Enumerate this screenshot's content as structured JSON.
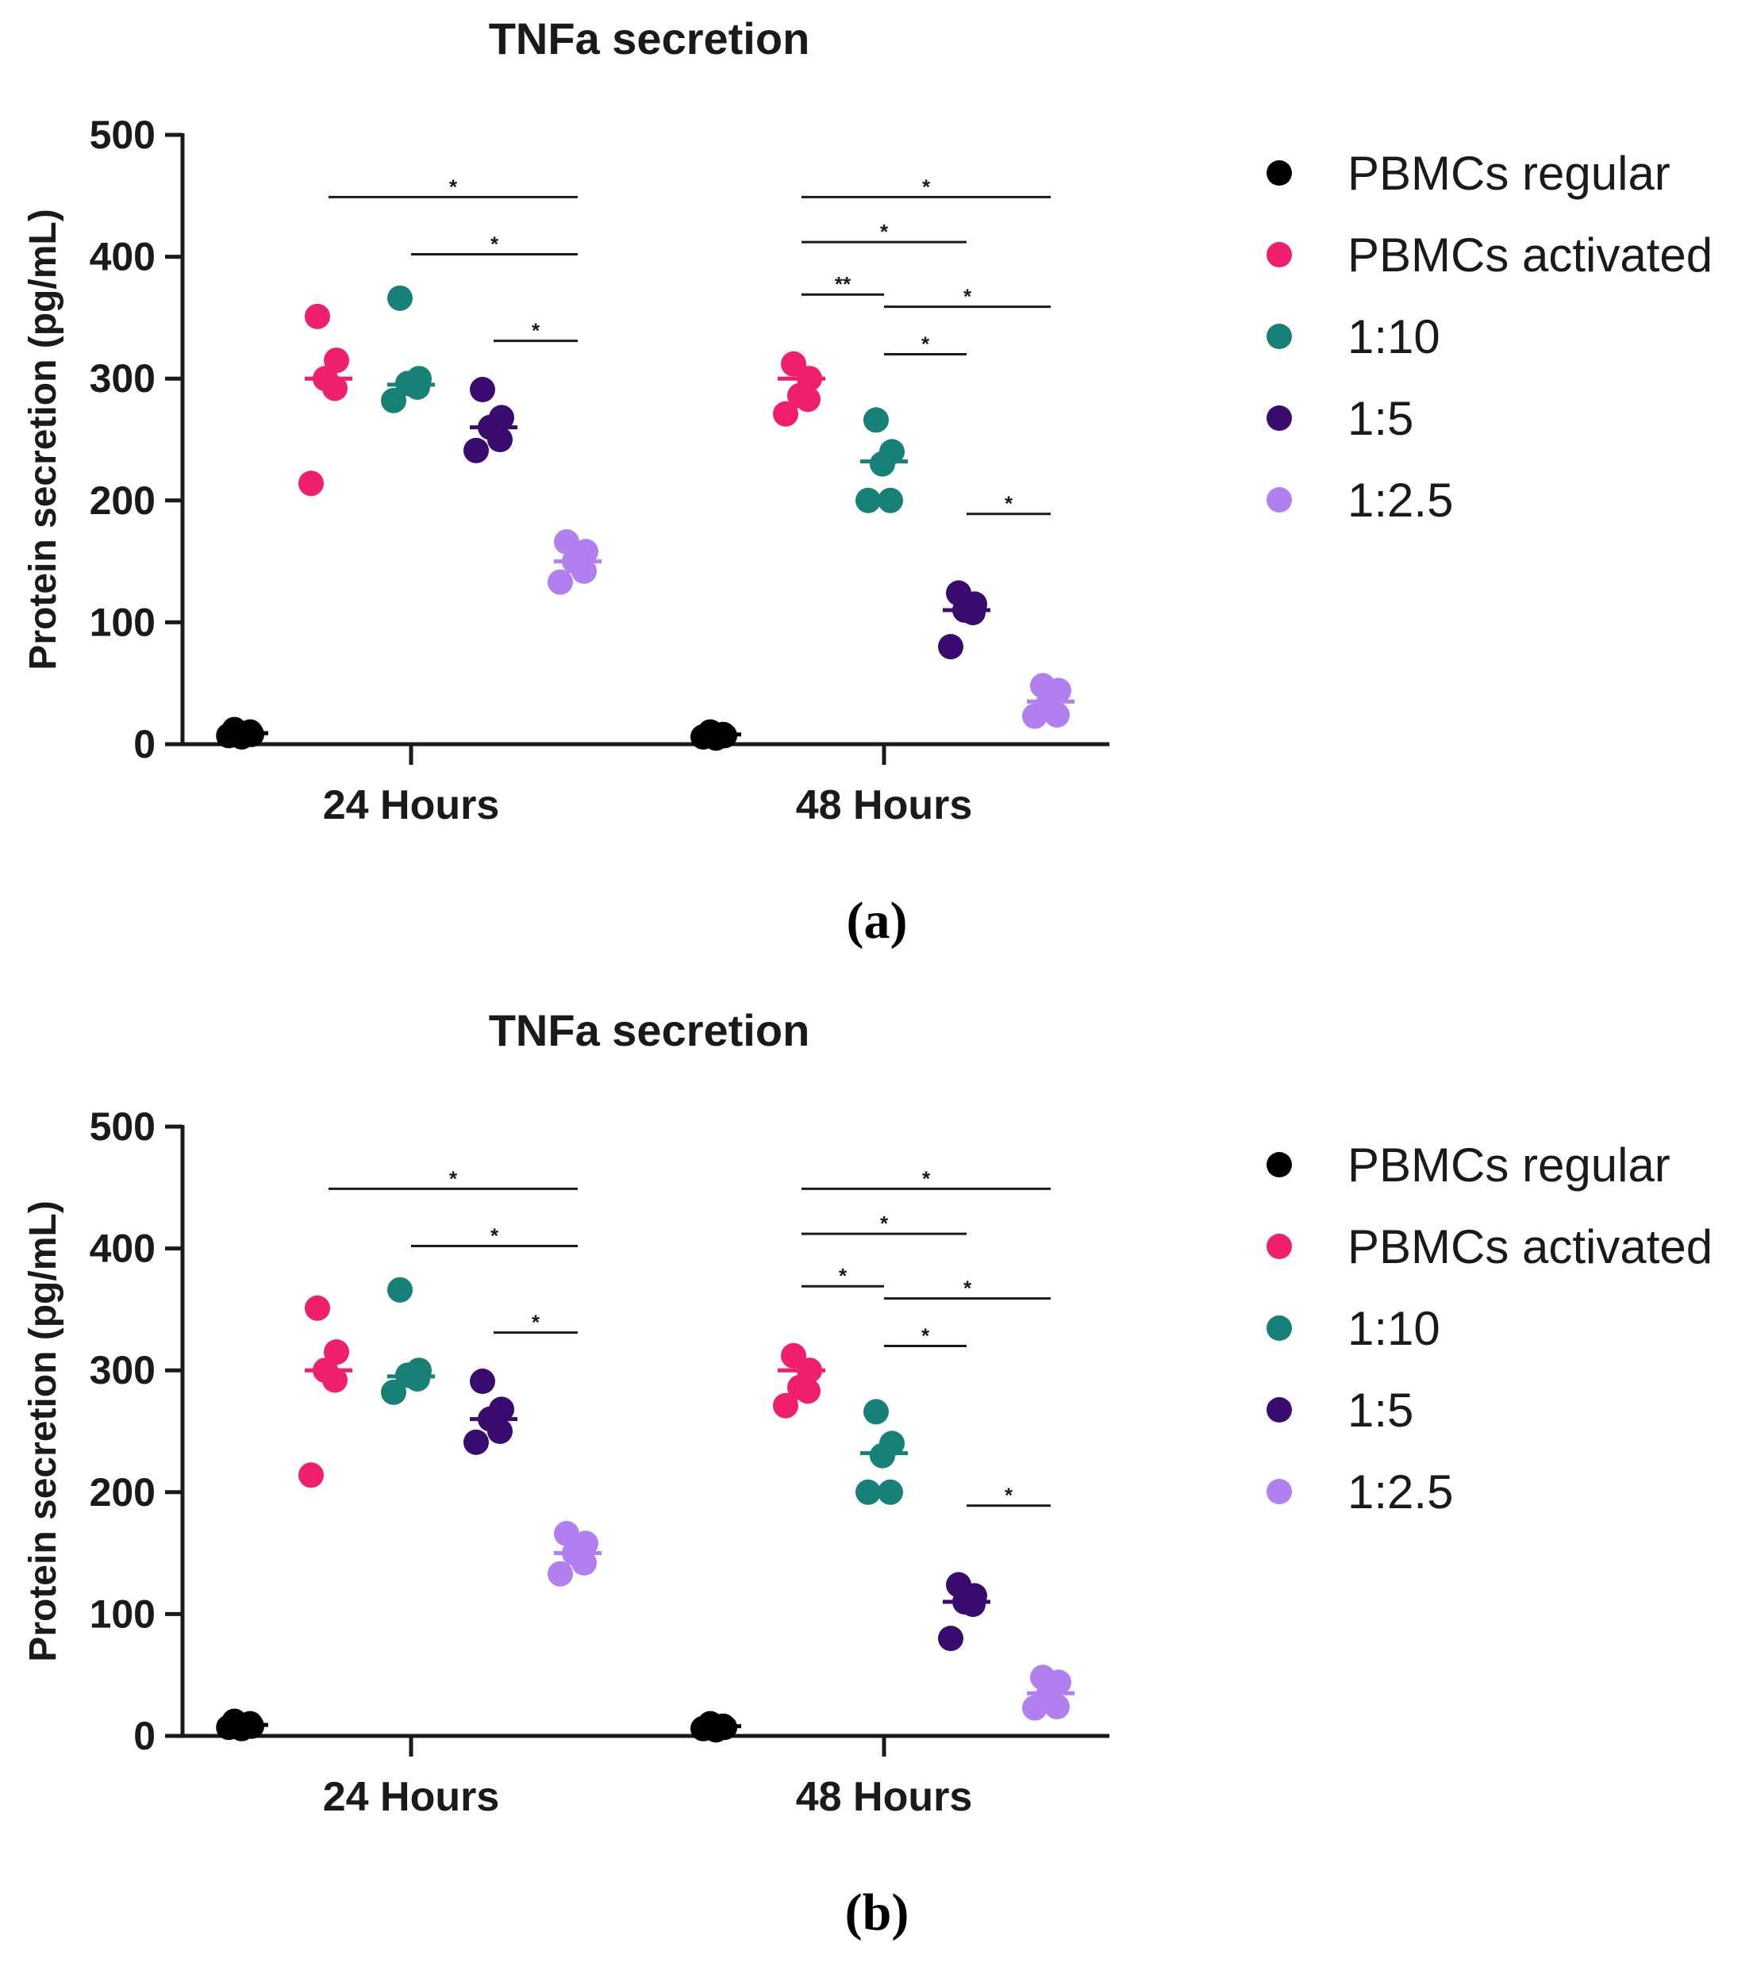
{
  "colors": {
    "PBMCs regular": "#000000",
    "PBMCs activated": "#ef1f6e",
    "1:10": "#178077",
    "1:5": "#3a0b6e",
    "1:2.5": "#b27ff0"
  },
  "chart_data": [
    {
      "type": "scatter",
      "caption": "(a)",
      "title": "TNFa secretion",
      "xlabel": "",
      "ylabel": "Protein secretion (pg/mL)",
      "ylim": [
        0,
        500
      ],
      "yticks": [
        0,
        100,
        200,
        300,
        400,
        500
      ],
      "ytick_labels": [
        "0",
        "100",
        "200",
        "300",
        "400",
        "500"
      ],
      "categories": [
        "24 Hours",
        "48 Hours"
      ],
      "legend": [
        "PBMCs regular",
        "PBMCs activated",
        "1:10",
        "1:5",
        "1:2.5"
      ],
      "legend_position": "right",
      "series": [
        {
          "name": "PBMCs regular",
          "means": [
            9,
            8
          ],
          "values": [
            [
              12,
              8,
              6,
              10,
              7
            ],
            [
              10,
              7,
              5,
              8,
              6
            ]
          ]
        },
        {
          "name": "PBMCs activated",
          "means": [
            300,
            300
          ],
          "values": [
            [
              351,
              315,
              300,
              292,
              214
            ],
            [
              312,
              300,
              286,
              283,
              271
            ]
          ]
        },
        {
          "name": "1:10",
          "means": [
            295,
            232
          ],
          "values": [
            [
              366,
              300,
              296,
              293,
              282
            ],
            [
              266,
              240,
              230,
              200,
              200
            ]
          ]
        },
        {
          "name": "1:5",
          "means": [
            260,
            110
          ],
          "values": [
            [
              291,
              268,
              260,
              250,
              241
            ],
            [
              124,
              115,
              110,
              108,
              80
            ]
          ]
        },
        {
          "name": "1:2.5",
          "means": [
            150,
            35
          ],
          "values": [
            [
              166,
              158,
              150,
              142,
              133
            ],
            [
              48,
              44,
              35,
              24,
              23
            ]
          ]
        }
      ],
      "significance": [
        {
          "group": "24 Hours",
          "from": "PBMCs activated",
          "to": "1:2.5",
          "y": 449,
          "label": "*"
        },
        {
          "group": "24 Hours",
          "from": "1:10",
          "to": "1:2.5",
          "y": 402,
          "label": "*"
        },
        {
          "group": "24 Hours",
          "from": "1:5",
          "to": "1:2.5",
          "y": 331,
          "label": "*"
        },
        {
          "group": "48 Hours",
          "from": "PBMCs activated",
          "to": "1:2.5",
          "y": 449,
          "label": "*"
        },
        {
          "group": "48 Hours",
          "from": "PBMCs activated",
          "to": "1:5",
          "y": 412,
          "label": "*"
        },
        {
          "group": "48 Hours",
          "from": "PBMCs activated",
          "to": "1:10",
          "y": 369,
          "label": "**"
        },
        {
          "group": "48 Hours",
          "from": "1:10",
          "to": "1:2.5",
          "y": 359,
          "label": "*"
        },
        {
          "group": "48 Hours",
          "from": "1:10",
          "to": "1:5",
          "y": 320,
          "label": "*"
        },
        {
          "group": "48 Hours",
          "from": "1:5",
          "to": "1:2.5",
          "y": 189,
          "label": "*"
        }
      ]
    },
    {
      "type": "scatter",
      "caption": "(b)",
      "title": "TNFa secretion",
      "xlabel": "",
      "ylabel": "Protein secretion (pg/mL)",
      "ylim": [
        0,
        500
      ],
      "yticks": [
        0,
        100,
        200,
        300,
        400,
        500
      ],
      "ytick_labels": [
        "0",
        "100",
        "200",
        "300",
        "400",
        "500"
      ],
      "categories": [
        "24 Hours",
        "48 Hours"
      ],
      "legend": [
        "PBMCs regular",
        "PBMCs activated",
        "1:10",
        "1:5",
        "1:2.5"
      ],
      "legend_position": "right",
      "series": [
        {
          "name": "PBMCs regular",
          "means": [
            9,
            8
          ],
          "values": [
            [
              12,
              8,
              6,
              10,
              7
            ],
            [
              10,
              7,
              5,
              8,
              6
            ]
          ]
        },
        {
          "name": "PBMCs activated",
          "means": [
            300,
            300
          ],
          "values": [
            [
              351,
              315,
              300,
              292,
              214
            ],
            [
              312,
              300,
              286,
              283,
              271
            ]
          ]
        },
        {
          "name": "1:10",
          "means": [
            295,
            232
          ],
          "values": [
            [
              366,
              300,
              296,
              293,
              282
            ],
            [
              266,
              240,
              230,
              200,
              200
            ]
          ]
        },
        {
          "name": "1:5",
          "means": [
            260,
            110
          ],
          "values": [
            [
              291,
              268,
              260,
              250,
              241
            ],
            [
              124,
              115,
              110,
              108,
              80
            ]
          ]
        },
        {
          "name": "1:2.5",
          "means": [
            150,
            35
          ],
          "values": [
            [
              166,
              158,
              150,
              142,
              133
            ],
            [
              48,
              44,
              35,
              24,
              23
            ]
          ]
        }
      ],
      "significance": [
        {
          "group": "24 Hours",
          "from": "PBMCs activated",
          "to": "1:2.5",
          "y": 449,
          "label": "*"
        },
        {
          "group": "24 Hours",
          "from": "1:10",
          "to": "1:2.5",
          "y": 402,
          "label": "*"
        },
        {
          "group": "24 Hours",
          "from": "1:5",
          "to": "1:2.5",
          "y": 331,
          "label": "*"
        },
        {
          "group": "48 Hours",
          "from": "PBMCs activated",
          "to": "1:2.5",
          "y": 449,
          "label": "*"
        },
        {
          "group": "48 Hours",
          "from": "PBMCs activated",
          "to": "1:5",
          "y": 412,
          "label": "*"
        },
        {
          "group": "48 Hours",
          "from": "PBMCs activated",
          "to": "1:10",
          "y": 369,
          "label": "*"
        },
        {
          "group": "48 Hours",
          "from": "1:10",
          "to": "1:2.5",
          "y": 359,
          "label": "*"
        },
        {
          "group": "48 Hours",
          "from": "1:10",
          "to": "1:5",
          "y": 320,
          "label": "*"
        },
        {
          "group": "48 Hours",
          "from": "1:5",
          "to": "1:2.5",
          "y": 189,
          "label": "*"
        }
      ]
    }
  ]
}
